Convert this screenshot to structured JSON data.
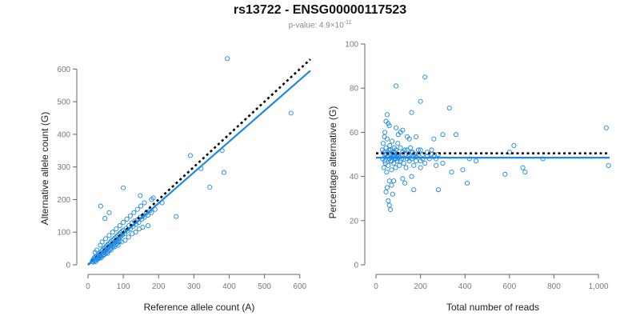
{
  "header": {
    "title": "rs13722 - ENSG00000117523",
    "pvalue_prefix": "p-value: 4.9×10",
    "pvalue_exp": "-11"
  },
  "colors": {
    "series": "#1e88e5",
    "reference": "#000000",
    "axis": "#666666"
  },
  "chart_data": [
    {
      "type": "scatter",
      "xlabel": "Reference allele count (A)",
      "ylabel": "Alternative allele count (G)",
      "xlim": [
        0,
        630
      ],
      "ylim": [
        0,
        640
      ],
      "xticks": [
        "0",
        "100",
        "200",
        "300",
        "400",
        "500",
        "600"
      ],
      "yticks": [
        "0",
        "100",
        "200",
        "300",
        "400",
        "500",
        "600"
      ],
      "grid": false,
      "points": [
        [
          14,
          14
        ],
        [
          16,
          18
        ],
        [
          18,
          22
        ],
        [
          20,
          16
        ],
        [
          22,
          26
        ],
        [
          24,
          20
        ],
        [
          26,
          28
        ],
        [
          28,
          24
        ],
        [
          30,
          34
        ],
        [
          32,
          30
        ],
        [
          34,
          27
        ],
        [
          36,
          38
        ],
        [
          38,
          33
        ],
        [
          40,
          44
        ],
        [
          42,
          36
        ],
        [
          44,
          48
        ],
        [
          46,
          40
        ],
        [
          48,
          52
        ],
        [
          50,
          46
        ],
        [
          52,
          58
        ],
        [
          54,
          50
        ],
        [
          56,
          62
        ],
        [
          58,
          54
        ],
        [
          60,
          66
        ],
        [
          62,
          58
        ],
        [
          64,
          70
        ],
        [
          66,
          60
        ],
        [
          68,
          74
        ],
        [
          70,
          64
        ],
        [
          72,
          78
        ],
        [
          74,
          68
        ],
        [
          76,
          82
        ],
        [
          78,
          72
        ],
        [
          80,
          86
        ],
        [
          82,
          76
        ],
        [
          84,
          90
        ],
        [
          86,
          80
        ],
        [
          88,
          94
        ],
        [
          90,
          84
        ],
        [
          92,
          98
        ],
        [
          94,
          88
        ],
        [
          96,
          102
        ],
        [
          98,
          92
        ],
        [
          100,
          106
        ],
        [
          104,
          96
        ],
        [
          108,
          112
        ],
        [
          112,
          104
        ],
        [
          116,
          120
        ],
        [
          120,
          110
        ],
        [
          124,
          128
        ],
        [
          128,
          118
        ],
        [
          132,
          134
        ],
        [
          136,
          124
        ],
        [
          140,
          138
        ],
        [
          144,
          130
        ],
        [
          148,
          146
        ],
        [
          152,
          140
        ],
        [
          156,
          150
        ],
        [
          160,
          146
        ],
        [
          165,
          158
        ],
        [
          170,
          152
        ],
        [
          175,
          166
        ],
        [
          180,
          160
        ],
        [
          190,
          170
        ],
        [
          20,
          38
        ],
        [
          25,
          45
        ],
        [
          30,
          22
        ],
        [
          35,
          60
        ],
        [
          40,
          70
        ],
        [
          45,
          30
        ],
        [
          50,
          80
        ],
        [
          55,
          35
        ],
        [
          60,
          90
        ],
        [
          65,
          45
        ],
        [
          70,
          100
        ],
        [
          75,
          55
        ],
        [
          80,
          110
        ],
        [
          85,
          60
        ],
        [
          90,
          120
        ],
        [
          95,
          70
        ],
        [
          100,
          130
        ],
        [
          105,
          75
        ],
        [
          110,
          140
        ],
        [
          115,
          85
        ],
        [
          120,
          150
        ],
        [
          125,
          95
        ],
        [
          130,
          160
        ],
        [
          135,
          100
        ],
        [
          140,
          170
        ],
        [
          145,
          110
        ],
        [
          150,
          180
        ],
        [
          155,
          115
        ],
        [
          160,
          190
        ],
        [
          170,
          120
        ],
        [
          180,
          200
        ],
        [
          36,
          180
        ],
        [
          48,
          142
        ],
        [
          60,
          160
        ],
        [
          100,
          236
        ],
        [
          148,
          212
        ],
        [
          185,
          205
        ],
        [
          210,
          190
        ],
        [
          250,
          148
        ],
        [
          290,
          335
        ],
        [
          320,
          295
        ],
        [
          345,
          238
        ],
        [
          380,
          350
        ],
        [
          385,
          283
        ],
        [
          395,
          632
        ],
        [
          575,
          465
        ],
        [
          12,
          10
        ],
        [
          15,
          8
        ],
        [
          18,
          12
        ],
        [
          22,
          10
        ],
        [
          25,
          15
        ],
        [
          28,
          18
        ],
        [
          32,
          20
        ],
        [
          35,
          25
        ],
        [
          38,
          22
        ],
        [
          42,
          28
        ],
        [
          46,
          32
        ],
        [
          50,
          35
        ],
        [
          54,
          40
        ],
        [
          58,
          42
        ],
        [
          62,
          48
        ],
        [
          66,
          52
        ],
        [
          70,
          55
        ],
        [
          74,
          60
        ],
        [
          78,
          62
        ],
        [
          82,
          65
        ],
        [
          86,
          70
        ],
        [
          90,
          72
        ]
      ],
      "fit_line": {
        "name": "",
        "x": [
          0,
          630
        ],
        "y": [
          0,
          595
        ]
      },
      "reference_line": {
        "name": "",
        "x": [
          0,
          630
        ],
        "y": [
          0,
          630
        ]
      }
    },
    {
      "type": "scatter",
      "xlabel": "Total number of reads",
      "ylabel": "Percentage alternative (G)",
      "xlim": [
        0,
        1050
      ],
      "ylim": [
        0,
        100
      ],
      "xticks": [
        "0",
        "200",
        "400",
        "600",
        "800",
        "1,000"
      ],
      "yticks": [
        "0",
        "20",
        "40",
        "60",
        "80",
        "100"
      ],
      "grid": false,
      "points": [
        [
          28,
          52
        ],
        [
          30,
          48
        ],
        [
          32,
          55
        ],
        [
          35,
          44
        ],
        [
          38,
          58
        ],
        [
          40,
          50
        ],
        [
          42,
          46
        ],
        [
          45,
          53
        ],
        [
          48,
          42
        ],
        [
          50,
          57
        ],
        [
          52,
          49
        ],
        [
          55,
          45
        ],
        [
          58,
          52
        ],
        [
          60,
          38
        ],
        [
          62,
          54
        ],
        [
          65,
          47
        ],
        [
          68,
          50
        ],
        [
          70,
          43
        ],
        [
          72,
          56
        ],
        [
          75,
          49
        ],
        [
          78,
          51
        ],
        [
          80,
          46
        ],
        [
          82,
          53
        ],
        [
          85,
          48
        ],
        [
          88,
          44
        ],
        [
          90,
          52
        ],
        [
          92,
          49
        ],
        [
          95,
          47
        ],
        [
          98,
          55
        ],
        [
          100,
          50
        ],
        [
          105,
          45
        ],
        [
          110,
          53
        ],
        [
          115,
          48
        ],
        [
          120,
          51
        ],
        [
          125,
          46
        ],
        [
          130,
          50
        ],
        [
          135,
          44
        ],
        [
          140,
          52
        ],
        [
          145,
          49
        ],
        [
          150,
          47
        ],
        [
          155,
          53
        ],
        [
          160,
          48
        ],
        [
          165,
          51
        ],
        [
          170,
          45
        ],
        [
          175,
          50
        ],
        [
          180,
          49
        ],
        [
          190,
          52
        ],
        [
          200,
          47
        ],
        [
          210,
          50
        ],
        [
          220,
          46
        ],
        [
          230,
          51
        ],
        [
          240,
          48
        ],
        [
          250,
          52
        ],
        [
          260,
          49
        ],
        [
          270,
          45
        ],
        [
          280,
          50
        ],
        [
          300,
          46
        ],
        [
          40,
          60
        ],
        [
          45,
          65
        ],
        [
          50,
          68
        ],
        [
          55,
          64
        ],
        [
          60,
          63
        ],
        [
          45,
          33
        ],
        [
          50,
          35
        ],
        [
          55,
          29
        ],
        [
          60,
          27
        ],
        [
          65,
          25
        ],
        [
          70,
          36
        ],
        [
          75,
          32
        ],
        [
          80,
          38
        ],
        [
          90,
          62
        ],
        [
          100,
          59
        ],
        [
          110,
          60
        ],
        [
          120,
          39
        ],
        [
          130,
          37
        ],
        [
          140,
          58
        ],
        [
          150,
          57
        ],
        [
          160,
          40
        ],
        [
          170,
          34
        ],
        [
          180,
          58
        ],
        [
          200,
          44
        ],
        [
          90,
          81
        ],
        [
          120,
          61
        ],
        [
          160,
          69
        ],
        [
          200,
          74
        ],
        [
          220,
          85
        ],
        [
          260,
          57
        ],
        [
          280,
          34
        ],
        [
          300,
          59
        ],
        [
          330,
          71
        ],
        [
          340,
          42
        ],
        [
          360,
          59
        ],
        [
          390,
          43
        ],
        [
          410,
          37
        ],
        [
          420,
          48
        ],
        [
          450,
          47
        ],
        [
          580,
          41
        ],
        [
          600,
          51
        ],
        [
          620,
          54
        ],
        [
          660,
          44
        ],
        [
          670,
          42
        ],
        [
          750,
          48
        ],
        [
          1035,
          62
        ],
        [
          1045,
          45
        ],
        [
          35,
          51
        ],
        [
          40,
          47
        ],
        [
          45,
          50
        ],
        [
          50,
          49
        ],
        [
          55,
          51
        ],
        [
          60,
          48
        ],
        [
          65,
          52
        ],
        [
          70,
          47
        ],
        [
          75,
          50
        ],
        [
          80,
          49
        ],
        [
          85,
          51
        ],
        [
          90,
          48
        ],
        [
          95,
          50
        ],
        [
          100,
          49
        ],
        [
          110,
          47
        ],
        [
          120,
          50
        ],
        [
          130,
          52
        ],
        [
          140,
          48
        ],
        [
          150,
          50
        ],
        [
          160,
          51
        ],
        [
          170,
          49
        ],
        [
          180,
          47
        ],
        [
          190,
          50
        ],
        [
          200,
          52
        ],
        [
          210,
          48
        ],
        [
          230,
          49
        ],
        [
          250,
          50
        ],
        [
          270,
          48
        ]
      ],
      "fit_line": {
        "name": "",
        "x": [
          0,
          1050
        ],
        "y": [
          48.5,
          48.5
        ]
      },
      "reference_line": {
        "name": "",
        "x": [
          0,
          1050
        ],
        "y": [
          50.5,
          50.5
        ]
      }
    }
  ]
}
